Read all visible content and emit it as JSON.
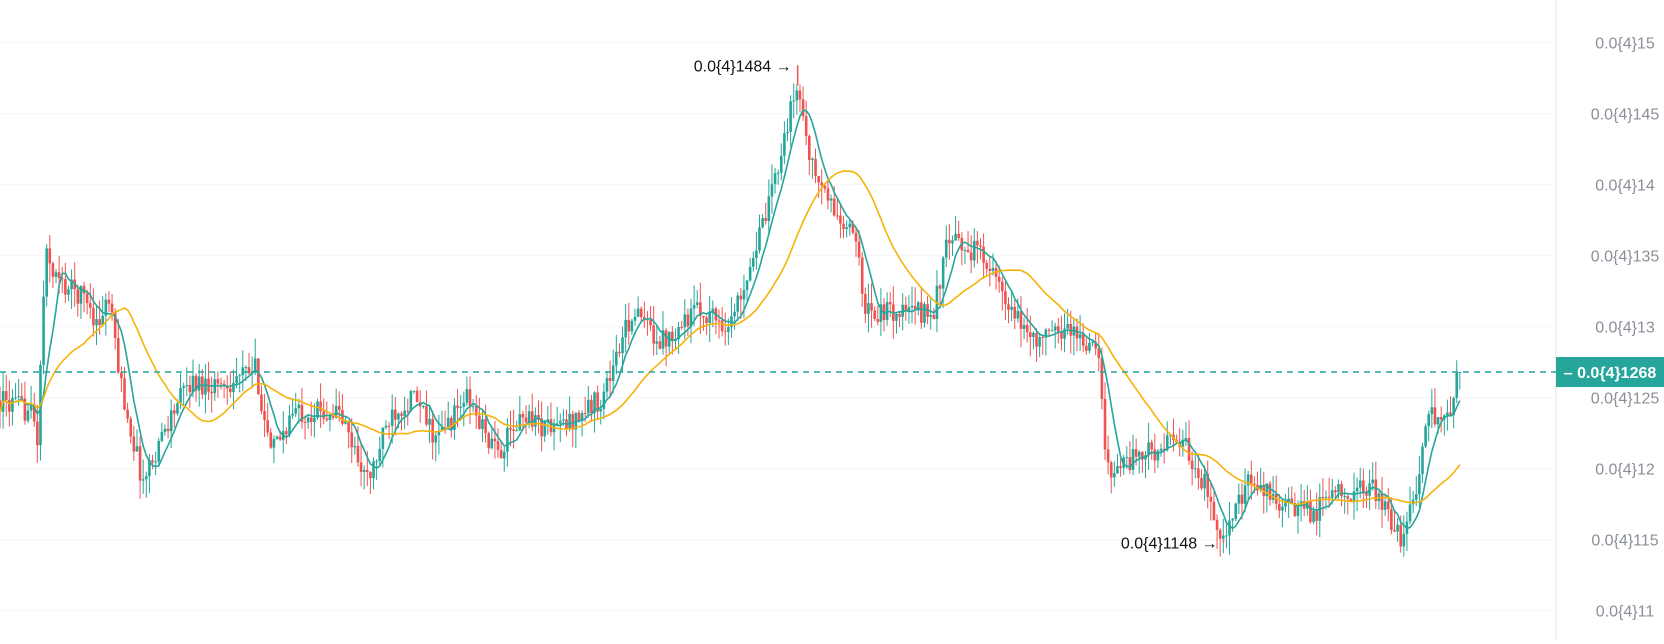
{
  "chart_data": {
    "type": "candlestick",
    "y_axis": {
      "side": "right",
      "ylim": [
        1.08e-05,
        1.53e-05
      ],
      "ticks": [
        {
          "value": 1.5e-05,
          "label": "0.0{4}15"
        },
        {
          "value": 1.45e-05,
          "label": "0.0{4}145"
        },
        {
          "value": 1.4e-05,
          "label": "0.0{4}14"
        },
        {
          "value": 1.35e-05,
          "label": "0.0{4}135"
        },
        {
          "value": 1.3e-05,
          "label": "0.0{4}13"
        },
        {
          "value": 1.25e-05,
          "label": "0.0{4}125"
        },
        {
          "value": 1.2e-05,
          "label": "0.0{4}12"
        },
        {
          "value": 1.15e-05,
          "label": "0.0{4}115"
        },
        {
          "value": 1.1e-05,
          "label": "0.0{4}11"
        }
      ]
    },
    "grid": "horizontal-only",
    "current_price": {
      "value": 1.268e-05,
      "label": "0.0{4}1268"
    },
    "annotations": [
      {
        "kind": "high",
        "value": 1.484e-05,
        "label": "0.0{4}1484 →",
        "at_fraction": 0.53
      },
      {
        "kind": "low",
        "value": 1.148e-05,
        "label": "0.0{4}1148 →",
        "at_fraction": 0.813
      }
    ],
    "series": [
      {
        "kind": "candles",
        "up_color": "#26a69a",
        "down_color": "#ef5350"
      },
      {
        "kind": "fast-ma",
        "color": "#26a69a"
      },
      {
        "kind": "slow-ma",
        "color": "#f5b30a"
      }
    ],
    "price_path": [
      [
        0.0,
        1.248e-05
      ],
      [
        0.021,
        1.24e-05
      ],
      [
        0.025,
        1.22e-05
      ],
      [
        0.03,
        1.35e-05
      ],
      [
        0.04,
        1.33e-05
      ],
      [
        0.058,
        1.32e-05
      ],
      [
        0.065,
        1.3e-05
      ],
      [
        0.072,
        1.32e-05
      ],
      [
        0.082,
        1.25e-05
      ],
      [
        0.095,
        1.19e-05
      ],
      [
        0.11,
        1.23e-05
      ],
      [
        0.125,
        1.26e-05
      ],
      [
        0.15,
        1.26e-05
      ],
      [
        0.17,
        1.27e-05
      ],
      [
        0.18,
        1.21e-05
      ],
      [
        0.195,
        1.24e-05
      ],
      [
        0.225,
        1.24e-05
      ],
      [
        0.245,
        1.19e-05
      ],
      [
        0.26,
        1.24e-05
      ],
      [
        0.275,
        1.25e-05
      ],
      [
        0.29,
        1.22e-05
      ],
      [
        0.31,
        1.25e-05
      ],
      [
        0.33,
        1.21e-05
      ],
      [
        0.35,
        1.24e-05
      ],
      [
        0.36,
        1.23e-05
      ],
      [
        0.375,
        1.23e-05
      ],
      [
        0.4,
        1.25e-05
      ],
      [
        0.42,
        1.31e-05
      ],
      [
        0.44,
        1.29e-05
      ],
      [
        0.46,
        1.31e-05
      ],
      [
        0.47,
        1.31e-05
      ],
      [
        0.485,
        1.3e-05
      ],
      [
        0.5,
        1.35e-05
      ],
      [
        0.51,
        1.38e-05
      ],
      [
        0.52,
        1.43e-05
      ],
      [
        0.53,
        1.47e-05
      ],
      [
        0.54,
        1.41e-05
      ],
      [
        0.55,
        1.39e-05
      ],
      [
        0.56,
        1.37e-05
      ],
      [
        0.57,
        1.36e-05
      ],
      [
        0.575,
        1.31e-05
      ],
      [
        0.6,
        1.31e-05
      ],
      [
        0.62,
        1.31e-05
      ],
      [
        0.63,
        1.36e-05
      ],
      [
        0.655,
        1.35e-05
      ],
      [
        0.67,
        1.31e-05
      ],
      [
        0.69,
        1.29e-05
      ],
      [
        0.71,
        1.3e-05
      ],
      [
        0.73,
        1.28e-05
      ],
      [
        0.735,
        1.2e-05
      ],
      [
        0.76,
        1.21e-05
      ],
      [
        0.785,
        1.22e-05
      ],
      [
        0.8,
        1.19e-05
      ],
      [
        0.813,
        1.15e-05
      ],
      [
        0.83,
        1.19e-05
      ],
      [
        0.86,
        1.17e-05
      ],
      [
        0.875,
        1.17e-05
      ],
      [
        0.89,
        1.19e-05
      ],
      [
        0.9,
        1.18e-05
      ],
      [
        0.91,
        1.19e-05
      ],
      [
        0.92,
        1.17e-05
      ],
      [
        0.93,
        1.15e-05
      ],
      [
        0.94,
        1.18e-05
      ],
      [
        0.95,
        1.24e-05
      ],
      [
        0.96,
        1.23e-05
      ],
      [
        0.97,
        1.268e-05
      ]
    ]
  }
}
